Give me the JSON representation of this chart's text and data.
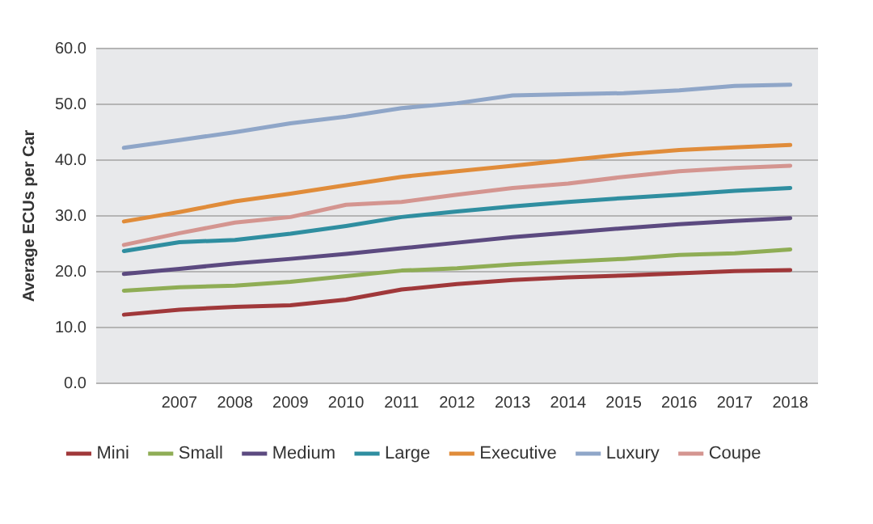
{
  "chart_data": {
    "type": "line",
    "ylabel": "Average ECUs per Car",
    "categories": [
      null,
      "2007",
      "2008",
      "2009",
      "2010",
      "2011",
      "2012",
      "2013",
      "2014",
      "2015",
      "2016",
      "2017",
      "2018"
    ],
    "series": [
      {
        "name": "Mini",
        "color": "#a0383a",
        "values": [
          12.3,
          13.2,
          13.7,
          14.0,
          15.0,
          16.8,
          17.8,
          18.5,
          19.0,
          19.3,
          19.7,
          20.1,
          20.3
        ]
      },
      {
        "name": "Small",
        "color": "#8fad55",
        "values": [
          16.6,
          17.2,
          17.5,
          18.2,
          19.2,
          20.2,
          20.6,
          21.3,
          21.8,
          22.3,
          23.0,
          23.3,
          24.0
        ]
      },
      {
        "name": "Medium",
        "color": "#5c4a80",
        "values": [
          19.6,
          20.5,
          21.5,
          22.3,
          23.2,
          24.2,
          25.2,
          26.2,
          27.0,
          27.8,
          28.5,
          29.1,
          29.6
        ]
      },
      {
        "name": "Large",
        "color": "#2f8ea0",
        "values": [
          23.7,
          25.3,
          25.7,
          26.8,
          28.2,
          29.8,
          30.8,
          31.7,
          32.5,
          33.2,
          33.8,
          34.5,
          35.0
        ]
      },
      {
        "name": "Executive",
        "color": "#e08c3a",
        "values": [
          29.0,
          30.7,
          32.6,
          34.0,
          35.5,
          37.0,
          38.0,
          39.0,
          40.0,
          41.0,
          41.8,
          42.3,
          42.7
        ]
      },
      {
        "name": "Luxury",
        "color": "#8fa6c8",
        "values": [
          42.2,
          43.6,
          45.0,
          46.6,
          47.8,
          49.3,
          50.2,
          51.6,
          51.8,
          52.0,
          52.5,
          53.3,
          53.5
        ]
      },
      {
        "name": "Coupe",
        "color": "#d49590",
        "values": [
          24.8,
          26.9,
          28.8,
          29.8,
          32.0,
          32.5,
          33.8,
          35.0,
          35.8,
          37.0,
          38.0,
          38.6,
          39.0
        ]
      }
    ],
    "ylim": [
      0,
      60
    ],
    "yticks": [
      {
        "value": 0,
        "label": "0.0"
      },
      {
        "value": 10,
        "label": "10.0"
      },
      {
        "value": 20,
        "label": "20.0"
      },
      {
        "value": 30,
        "label": "30.0"
      },
      {
        "value": 40,
        "label": "40.0"
      },
      {
        "value": 50,
        "label": "50.0"
      },
      {
        "value": 60,
        "label": "60.0"
      }
    ],
    "grid": "y",
    "legend": "bottom",
    "marker": "none",
    "line_style": "solid"
  }
}
